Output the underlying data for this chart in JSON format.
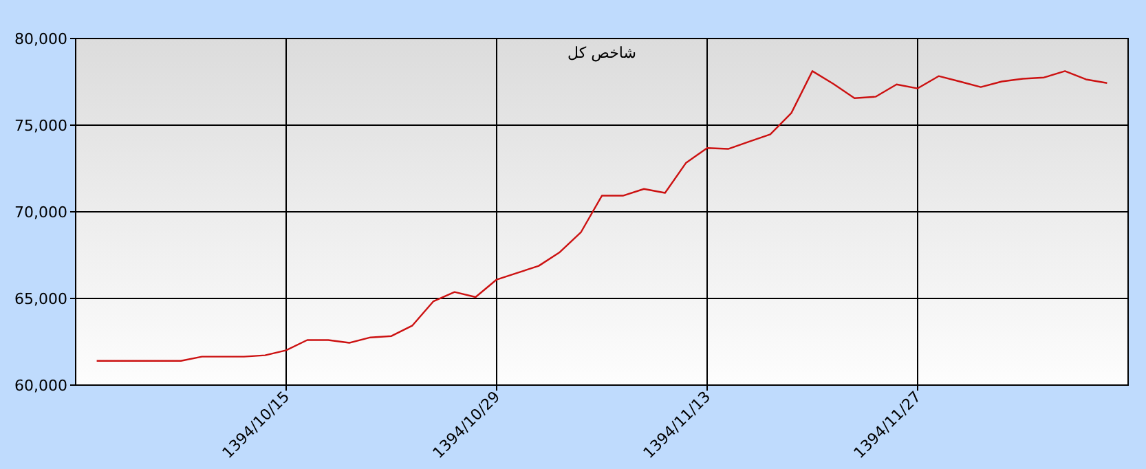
{
  "chart_data": {
    "type": "line",
    "title": "شاخص کل",
    "categories": [
      null,
      null,
      null,
      null,
      null,
      null,
      null,
      null,
      null,
      "1394/10/15",
      null,
      null,
      null,
      null,
      null,
      null,
      null,
      null,
      null,
      "1394/10/29",
      null,
      null,
      null,
      null,
      null,
      null,
      null,
      null,
      null,
      "1394/11/13",
      null,
      null,
      null,
      null,
      null,
      null,
      null,
      null,
      null,
      "1394/11/27",
      null,
      null,
      null,
      null,
      null,
      null,
      null,
      null,
      null
    ],
    "series": [
      {
        "color": "#cc1111",
        "values": [
          61400,
          61400,
          61400,
          61400,
          61400,
          61640,
          61640,
          61640,
          61720,
          62010,
          62600,
          62600,
          62440,
          62750,
          62830,
          63440,
          64840,
          65370,
          65080,
          66090,
          66480,
          66880,
          67670,
          68810,
          70930,
          70930,
          71320,
          71090,
          72830,
          73680,
          73630,
          74050,
          74470,
          75700,
          78120,
          77380,
          76560,
          76640,
          77350,
          77120,
          77830,
          77520,
          77200,
          77520,
          77680,
          77750,
          78120,
          77640,
          77430
        ]
      }
    ],
    "ylim": [
      60000,
      80000
    ],
    "yticks": [
      {
        "value": 60000,
        "label": "60,000"
      },
      {
        "value": 65000,
        "label": "65,000"
      },
      {
        "value": 70000,
        "label": "70,000"
      },
      {
        "value": 75000,
        "label": "75,000"
      },
      {
        "value": 80000,
        "label": "80,000"
      }
    ],
    "grid": true
  }
}
